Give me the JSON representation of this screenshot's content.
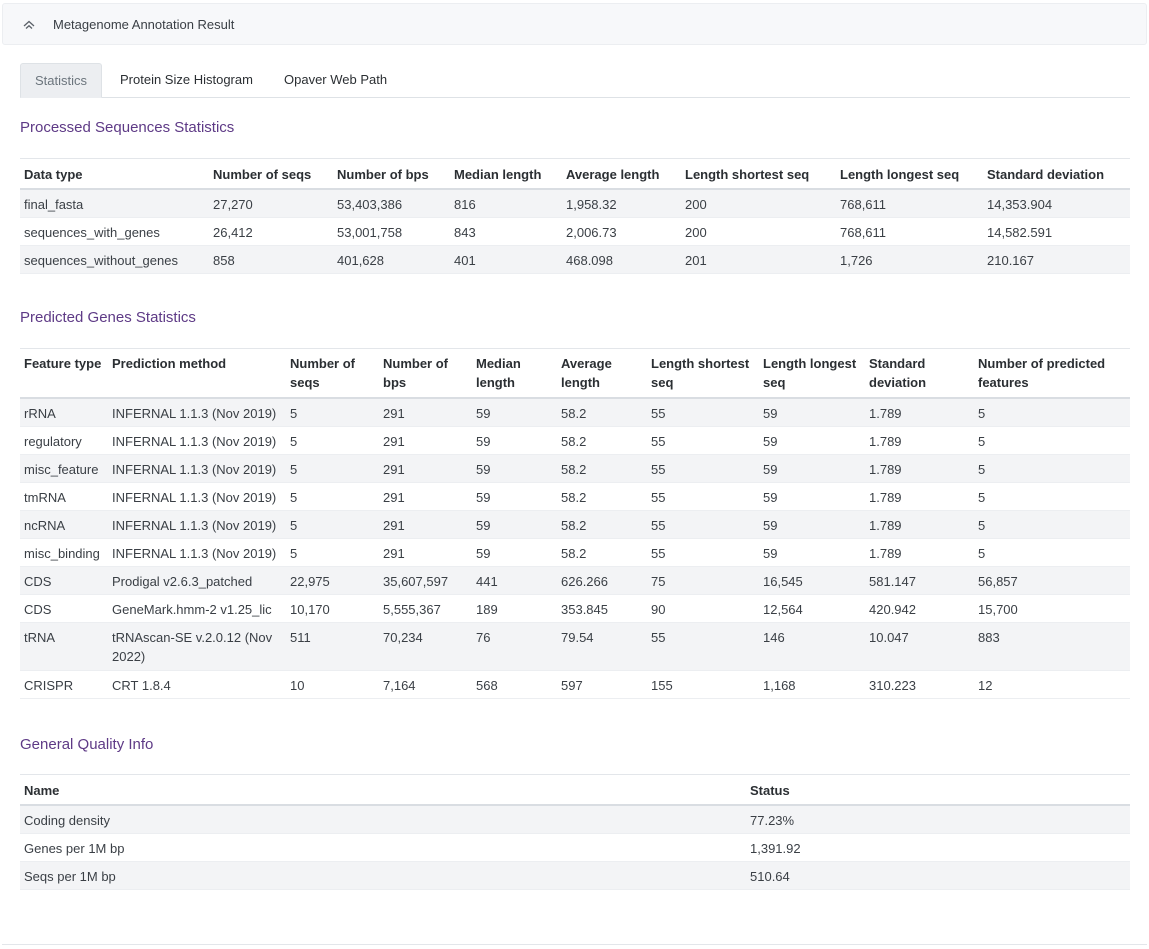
{
  "panel": {
    "title": "Metagenome Annotation Result",
    "collapse_icon": "chevron-up-icon"
  },
  "tabs": [
    "Statistics",
    "Protein Size Histogram",
    "Opaver Web Path"
  ],
  "processed": {
    "title": "Processed Sequences Statistics",
    "headers": [
      "Data type",
      "Number of seqs",
      "Number of bps",
      "Median length",
      "Average length",
      "Length shortest seq",
      "Length longest seq",
      "Standard deviation"
    ],
    "rows": [
      [
        "final_fasta",
        "27,270",
        "53,403,386",
        "816",
        "1,958.32",
        "200",
        "768,611",
        "14,353.904"
      ],
      [
        "sequences_with_genes",
        "26,412",
        "53,001,758",
        "843",
        "2,006.73",
        "200",
        "768,611",
        "14,582.591"
      ],
      [
        "sequences_without_genes",
        "858",
        "401,628",
        "401",
        "468.098",
        "201",
        "1,726",
        "210.167"
      ]
    ]
  },
  "genes": {
    "title": "Predicted Genes Statistics",
    "headers": [
      "Feature type",
      "Prediction method",
      "Number of seqs",
      "Number of bps",
      "Median length",
      "Average length",
      "Length shortest seq",
      "Length longest seq",
      "Standard deviation",
      "Number of predicted features"
    ],
    "rows": [
      [
        "rRNA",
        "INFERNAL 1.1.3 (Nov 2019)",
        "5",
        "291",
        "59",
        "58.2",
        "55",
        "59",
        "1.789",
        "5"
      ],
      [
        "regulatory",
        "INFERNAL 1.1.3 (Nov 2019)",
        "5",
        "291",
        "59",
        "58.2",
        "55",
        "59",
        "1.789",
        "5"
      ],
      [
        "misc_feature",
        "INFERNAL 1.1.3 (Nov 2019)",
        "5",
        "291",
        "59",
        "58.2",
        "55",
        "59",
        "1.789",
        "5"
      ],
      [
        "tmRNA",
        "INFERNAL 1.1.3 (Nov 2019)",
        "5",
        "291",
        "59",
        "58.2",
        "55",
        "59",
        "1.789",
        "5"
      ],
      [
        "ncRNA",
        "INFERNAL 1.1.3 (Nov 2019)",
        "5",
        "291",
        "59",
        "58.2",
        "55",
        "59",
        "1.789",
        "5"
      ],
      [
        "misc_binding",
        "INFERNAL 1.1.3 (Nov 2019)",
        "5",
        "291",
        "59",
        "58.2",
        "55",
        "59",
        "1.789",
        "5"
      ],
      [
        "CDS",
        "Prodigal v2.6.3_patched",
        "22,975",
        "35,607,597",
        "441",
        "626.266",
        "75",
        "16,545",
        "581.147",
        "56,857"
      ],
      [
        "CDS",
        "GeneMark.hmm-2 v1.25_lic",
        "10,170",
        "5,555,367",
        "189",
        "353.845",
        "90",
        "12,564",
        "420.942",
        "15,700"
      ],
      [
        "tRNA",
        "tRNAscan-SE v.2.0.12 (Nov 2022)",
        "511",
        "70,234",
        "76",
        "79.54",
        "55",
        "146",
        "10.047",
        "883"
      ],
      [
        "CRISPR",
        "CRT 1.8.4",
        "10",
        "7,164",
        "568",
        "597",
        "155",
        "1,168",
        "310.223",
        "12"
      ]
    ]
  },
  "quality": {
    "title": "General Quality Info",
    "headers": [
      "Name",
      "Status"
    ],
    "rows": [
      [
        "Coding density",
        "77.23%"
      ],
      [
        "Genes per 1M bp",
        "1,391.92"
      ],
      [
        "Seqs per 1M bp",
        "510.64"
      ]
    ]
  }
}
